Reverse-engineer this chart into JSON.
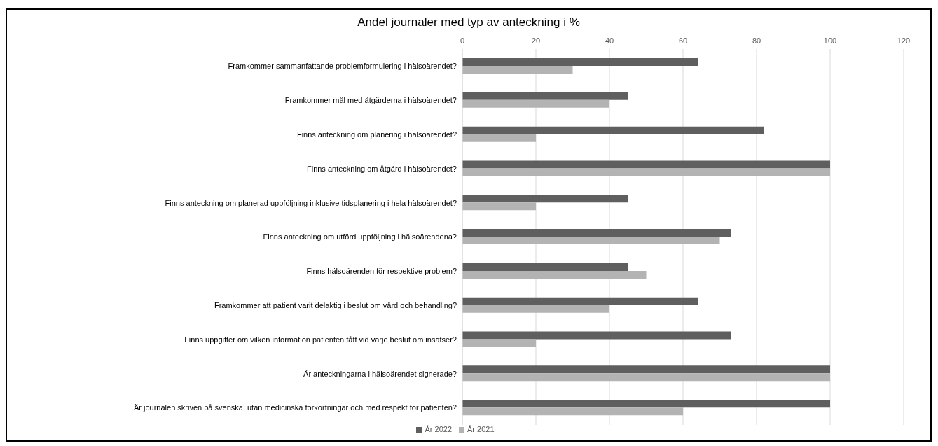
{
  "chart_data": {
    "type": "bar",
    "orientation": "horizontal",
    "title": "Andel journaler med typ av anteckning i %",
    "categories": [
      "Framkommer sammanfattande problemformulering i hälsoärendet?",
      "Framkommer mål med åtgärderna i hälsoärendet?",
      "Finns anteckning om planering i hälsoärendet?",
      "Finns anteckning om åtgärd i hälsoärendet?",
      "Finns anteckning om planerad uppföljning inklusive tidsplanering i hela hälsoärendet?",
      "Finns anteckning om utförd uppföljning i hälsoärendena?",
      "Finns hälsoärenden för respektive problem?",
      "Framkommer att patient varit delaktig i beslut om vård och behandling?",
      "Finns uppgifter om vilken information patienten fått vid varje beslut om insatser?",
      "Är anteckningarna i hälsoärendet signerade?",
      "Är journalen skriven på svenska, utan medicinska förkortningar och med respekt för patienten?"
    ],
    "series": [
      {
        "name": "År 2022",
        "color": "#5f5f5f",
        "values": [
          64,
          45,
          82,
          100,
          45,
          73,
          45,
          64,
          73,
          100,
          100
        ]
      },
      {
        "name": "År 2021",
        "color": "#b3b3b3",
        "values": [
          30,
          40,
          20,
          100,
          20,
          70,
          50,
          40,
          20,
          100,
          60
        ]
      }
    ],
    "xlim": [
      0,
      120
    ],
    "xticks": [
      0,
      20,
      40,
      60,
      80,
      100,
      120
    ],
    "grid": "x",
    "legend": "bottom"
  }
}
